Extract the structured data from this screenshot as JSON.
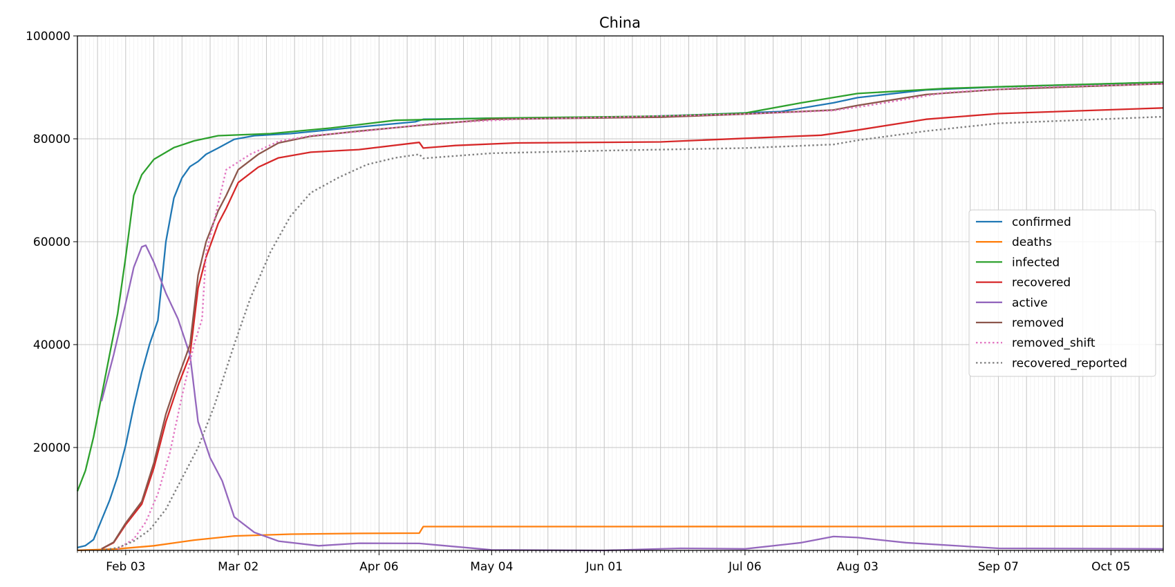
{
  "chart_data": {
    "type": "line",
    "title": "China",
    "xlabel": "",
    "ylabel": "",
    "x_axis": {
      "start": "2020-01-22",
      "end": "2020-10-18",
      "ticks": [
        {
          "date": "2020-02-03",
          "label": "Feb 03"
        },
        {
          "date": "2020-03-02",
          "label": "Mar 02"
        },
        {
          "date": "2020-04-06",
          "label": "Apr 06"
        },
        {
          "date": "2020-05-04",
          "label": "May 04"
        },
        {
          "date": "2020-06-01",
          "label": "Jun 01"
        },
        {
          "date": "2020-07-06",
          "label": "Jul 06"
        },
        {
          "date": "2020-08-03",
          "label": "Aug 03"
        },
        {
          "date": "2020-09-07",
          "label": "Sep 07"
        },
        {
          "date": "2020-10-05",
          "label": "Oct 05"
        }
      ]
    },
    "y_axis": {
      "min": 0,
      "max": 100000,
      "ticks": [
        {
          "value": 20000,
          "label": "20000"
        },
        {
          "value": 40000,
          "label": "40000"
        },
        {
          "value": 60000,
          "label": "60000"
        },
        {
          "value": 80000,
          "label": "80000"
        },
        {
          "value": 100000,
          "label": "100000"
        }
      ]
    },
    "grid": true,
    "legend": "center-right",
    "series": [
      {
        "name": "confirmed",
        "color": "#1f77b4",
        "style": "solid",
        "points": [
          [
            "2020-01-22",
            550
          ],
          [
            "2020-01-24",
            920
          ],
          [
            "2020-01-26",
            2100
          ],
          [
            "2020-01-28",
            5900
          ],
          [
            "2020-01-30",
            9700
          ],
          [
            "2020-02-01",
            14400
          ],
          [
            "2020-02-03",
            20400
          ],
          [
            "2020-02-05",
            28000
          ],
          [
            "2020-02-07",
            34600
          ],
          [
            "2020-02-09",
            40200
          ],
          [
            "2020-02-11",
            44700
          ],
          [
            "2020-02-13",
            60000
          ],
          [
            "2020-02-15",
            68500
          ],
          [
            "2020-02-17",
            72400
          ],
          [
            "2020-02-19",
            74600
          ],
          [
            "2020-02-21",
            75600
          ],
          [
            "2020-02-23",
            77000
          ],
          [
            "2020-02-26",
            78200
          ],
          [
            "2020-03-01",
            79900
          ],
          [
            "2020-03-06",
            80600
          ],
          [
            "2020-03-15",
            81000
          ],
          [
            "2020-04-01",
            82300
          ],
          [
            "2020-04-15",
            83300
          ],
          [
            "2020-04-17",
            83800
          ],
          [
            "2020-05-04",
            84000
          ],
          [
            "2020-06-01",
            84100
          ],
          [
            "2020-06-25",
            84700
          ],
          [
            "2020-07-15",
            85300
          ],
          [
            "2020-07-28",
            87000
          ],
          [
            "2020-08-03",
            88000
          ],
          [
            "2020-08-20",
            89500
          ],
          [
            "2020-09-07",
            90100
          ],
          [
            "2020-10-05",
            90700
          ],
          [
            "2020-10-18",
            91000
          ]
        ]
      },
      {
        "name": "deaths",
        "color": "#ff7f0e",
        "style": "solid",
        "points": [
          [
            "2020-01-22",
            17
          ],
          [
            "2020-02-01",
            300
          ],
          [
            "2020-02-10",
            900
          ],
          [
            "2020-02-20",
            2000
          ],
          [
            "2020-03-01",
            2800
          ],
          [
            "2020-03-15",
            3150
          ],
          [
            "2020-04-01",
            3300
          ],
          [
            "2020-04-16",
            3350
          ],
          [
            "2020-04-17",
            4630
          ],
          [
            "2020-06-01",
            4634
          ],
          [
            "2020-08-03",
            4650
          ],
          [
            "2020-10-18",
            4740
          ]
        ]
      },
      {
        "name": "infected",
        "color": "#2ca02c",
        "style": "solid",
        "points": [
          [
            "2020-01-22",
            11500
          ],
          [
            "2020-01-24",
            15500
          ],
          [
            "2020-01-26",
            22000
          ],
          [
            "2020-01-28",
            30000
          ],
          [
            "2020-01-30",
            38000
          ],
          [
            "2020-02-01",
            46000
          ],
          [
            "2020-02-03",
            57000
          ],
          [
            "2020-02-05",
            69000
          ],
          [
            "2020-02-07",
            73000
          ],
          [
            "2020-02-10",
            76000
          ],
          [
            "2020-02-15",
            78300
          ],
          [
            "2020-02-20",
            79600
          ],
          [
            "2020-02-26",
            80600
          ],
          [
            "2020-03-10",
            81000
          ],
          [
            "2020-03-25",
            82100
          ],
          [
            "2020-04-10",
            83600
          ],
          [
            "2020-05-04",
            84000
          ],
          [
            "2020-06-15",
            84400
          ],
          [
            "2020-07-06",
            85000
          ],
          [
            "2020-07-20",
            87000
          ],
          [
            "2020-08-03",
            88800
          ],
          [
            "2020-08-25",
            89800
          ],
          [
            "2020-09-15",
            90300
          ],
          [
            "2020-10-18",
            91000
          ]
        ]
      },
      {
        "name": "recovered",
        "color": "#d62728",
        "style": "solid",
        "points": [
          [
            "2020-01-28",
            300
          ],
          [
            "2020-01-31",
            1500
          ],
          [
            "2020-02-03",
            5000
          ],
          [
            "2020-02-07",
            9000
          ],
          [
            "2020-02-10",
            16000
          ],
          [
            "2020-02-13",
            25000
          ],
          [
            "2020-02-16",
            32000
          ],
          [
            "2020-02-19",
            38000
          ],
          [
            "2020-02-21",
            51000
          ],
          [
            "2020-02-23",
            57000
          ],
          [
            "2020-02-26",
            63500
          ],
          [
            "2020-02-28",
            66500
          ],
          [
            "2020-03-02",
            71500
          ],
          [
            "2020-03-07",
            74500
          ],
          [
            "2020-03-12",
            76300
          ],
          [
            "2020-03-20",
            77400
          ],
          [
            "2020-04-01",
            77900
          ],
          [
            "2020-04-16",
            79300
          ],
          [
            "2020-04-17",
            78200
          ],
          [
            "2020-04-25",
            78700
          ],
          [
            "2020-05-10",
            79200
          ],
          [
            "2020-06-15",
            79400
          ],
          [
            "2020-07-06",
            80100
          ],
          [
            "2020-07-25",
            80700
          ],
          [
            "2020-08-03",
            81700
          ],
          [
            "2020-08-20",
            83800
          ],
          [
            "2020-09-07",
            84900
          ],
          [
            "2020-10-18",
            86000
          ]
        ]
      },
      {
        "name": "active",
        "color": "#9467bd",
        "style": "solid",
        "points": [
          [
            "2020-01-28",
            29000
          ],
          [
            "2020-01-31",
            38000
          ],
          [
            "2020-02-03",
            48000
          ],
          [
            "2020-02-05",
            55000
          ],
          [
            "2020-02-07",
            59000
          ],
          [
            "2020-02-08",
            59300
          ],
          [
            "2020-02-10",
            56000
          ],
          [
            "2020-02-13",
            50000
          ],
          [
            "2020-02-16",
            45000
          ],
          [
            "2020-02-19",
            38000
          ],
          [
            "2020-02-21",
            25000
          ],
          [
            "2020-02-24",
            18000
          ],
          [
            "2020-02-27",
            13500
          ],
          [
            "2020-03-01",
            6500
          ],
          [
            "2020-03-06",
            3500
          ],
          [
            "2020-03-12",
            1800
          ],
          [
            "2020-03-22",
            900
          ],
          [
            "2020-04-01",
            1400
          ],
          [
            "2020-04-16",
            1350
          ],
          [
            "2020-05-04",
            100
          ],
          [
            "2020-06-01",
            0
          ],
          [
            "2020-06-20",
            400
          ],
          [
            "2020-07-06",
            300
          ],
          [
            "2020-07-20",
            1500
          ],
          [
            "2020-07-28",
            2700
          ],
          [
            "2020-08-03",
            2500
          ],
          [
            "2020-08-15",
            1500
          ],
          [
            "2020-09-07",
            400
          ],
          [
            "2020-10-18",
            300
          ]
        ]
      },
      {
        "name": "removed",
        "color": "#8c564b",
        "style": "solid",
        "points": [
          [
            "2020-01-28",
            300
          ],
          [
            "2020-01-31",
            1600
          ],
          [
            "2020-02-03",
            5300
          ],
          [
            "2020-02-07",
            9500
          ],
          [
            "2020-02-10",
            17000
          ],
          [
            "2020-02-13",
            26500
          ],
          [
            "2020-02-16",
            33500
          ],
          [
            "2020-02-19",
            40000
          ],
          [
            "2020-02-21",
            53500
          ],
          [
            "2020-02-23",
            60000
          ],
          [
            "2020-02-26",
            66000
          ],
          [
            "2020-02-28",
            69000
          ],
          [
            "2020-03-02",
            74000
          ],
          [
            "2020-03-07",
            77000
          ],
          [
            "2020-03-12",
            79200
          ],
          [
            "2020-03-20",
            80500
          ],
          [
            "2020-04-01",
            81500
          ],
          [
            "2020-04-16",
            82600
          ],
          [
            "2020-05-04",
            83800
          ],
          [
            "2020-06-15",
            84200
          ],
          [
            "2020-07-06",
            84800
          ],
          [
            "2020-07-28",
            85600
          ],
          [
            "2020-08-03",
            86500
          ],
          [
            "2020-08-20",
            88600
          ],
          [
            "2020-09-07",
            89600
          ],
          [
            "2020-10-18",
            90700
          ]
        ]
      },
      {
        "name": "removed_shift",
        "color": "#e377c2",
        "style": "dotted",
        "points": [
          [
            "2020-02-01",
            300
          ],
          [
            "2020-02-05",
            2200
          ],
          [
            "2020-02-08",
            5500
          ],
          [
            "2020-02-11",
            11000
          ],
          [
            "2020-02-14",
            19000
          ],
          [
            "2020-02-17",
            30000
          ],
          [
            "2020-02-20",
            40000
          ],
          [
            "2020-02-22",
            45000
          ],
          [
            "2020-02-23",
            58000
          ],
          [
            "2020-02-25",
            64000
          ],
          [
            "2020-02-28",
            74000
          ],
          [
            "2020-03-05",
            77000
          ],
          [
            "2020-03-12",
            79500
          ],
          [
            "2020-03-20",
            80600
          ],
          [
            "2020-04-01",
            81400
          ],
          [
            "2020-04-20",
            83000
          ],
          [
            "2020-05-10",
            83800
          ],
          [
            "2020-07-06",
            84800
          ],
          [
            "2020-07-28",
            85500
          ],
          [
            "2020-08-06",
            86500
          ],
          [
            "2020-08-25",
            89000
          ],
          [
            "2020-09-15",
            90000
          ],
          [
            "2020-10-18",
            90700
          ]
        ]
      },
      {
        "name": "recovered_reported",
        "color": "#7f7f7f",
        "style": "dotted",
        "points": [
          [
            "2020-01-28",
            50
          ],
          [
            "2020-02-01",
            500
          ],
          [
            "2020-02-05",
            1800
          ],
          [
            "2020-02-09",
            4000
          ],
          [
            "2020-02-13",
            8000
          ],
          [
            "2020-02-17",
            14000
          ],
          [
            "2020-02-21",
            20000
          ],
          [
            "2020-02-25",
            28000
          ],
          [
            "2020-03-01",
            40000
          ],
          [
            "2020-03-05",
            49000
          ],
          [
            "2020-03-10",
            58000
          ],
          [
            "2020-03-15",
            65000
          ],
          [
            "2020-03-20",
            69500
          ],
          [
            "2020-03-27",
            72500
          ],
          [
            "2020-04-03",
            75000
          ],
          [
            "2020-04-10",
            76300
          ],
          [
            "2020-04-16",
            77000
          ],
          [
            "2020-04-17",
            76200
          ],
          [
            "2020-05-04",
            77200
          ],
          [
            "2020-06-01",
            77700
          ],
          [
            "2020-07-06",
            78200
          ],
          [
            "2020-07-28",
            78900
          ],
          [
            "2020-08-03",
            79700
          ],
          [
            "2020-08-20",
            81500
          ],
          [
            "2020-09-07",
            83000
          ],
          [
            "2020-10-18",
            84300
          ]
        ]
      }
    ]
  }
}
